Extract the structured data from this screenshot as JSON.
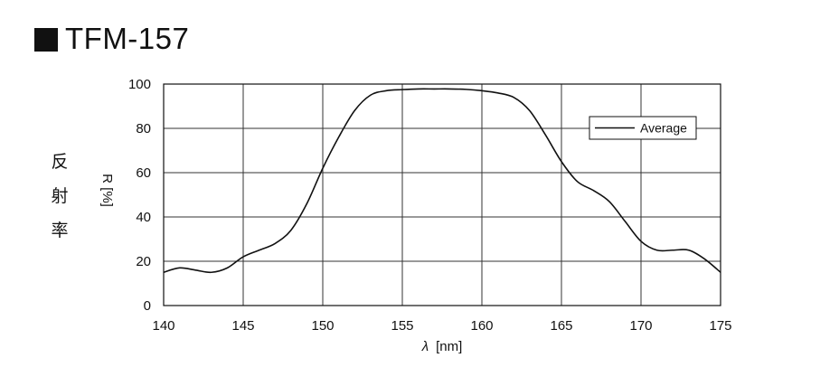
{
  "page": {
    "title": "TFM-157",
    "side_label_chars": [
      "反",
      "射",
      "率"
    ]
  },
  "chart_data": {
    "type": "line",
    "title": "TFM-157",
    "xlabel": "λ [nm]",
    "xlabel_symbol": "λ",
    "xlabel_unit": "[nm]",
    "ylabel": "R [%]",
    "xlim": [
      140,
      175
    ],
    "ylim": [
      0,
      100
    ],
    "x_ticks": [
      140,
      145,
      150,
      155,
      160,
      165,
      170,
      175
    ],
    "y_ticks": [
      0,
      20,
      40,
      60,
      80,
      100
    ],
    "grid": true,
    "legend": {
      "position": "top-right",
      "entries": [
        "Average"
      ]
    },
    "series": [
      {
        "name": "Average",
        "color": "#111111",
        "x": [
          140,
          141,
          142,
          143,
          144,
          145,
          146,
          147,
          148,
          149,
          150,
          151,
          152,
          153,
          154,
          155,
          156,
          157,
          158,
          159,
          160,
          161,
          162,
          163,
          164,
          165,
          166,
          167,
          168,
          169,
          170,
          171,
          172,
          173,
          174,
          175
        ],
        "y": [
          15,
          17,
          16,
          15,
          17,
          22,
          25,
          28,
          34,
          46,
          62,
          76,
          88,
          95,
          97,
          97.5,
          97.8,
          97.8,
          97.8,
          97.6,
          97,
          96,
          94,
          88,
          77,
          65,
          56,
          52,
          47,
          38,
          29,
          25,
          25,
          25,
          21,
          15
        ]
      }
    ]
  }
}
